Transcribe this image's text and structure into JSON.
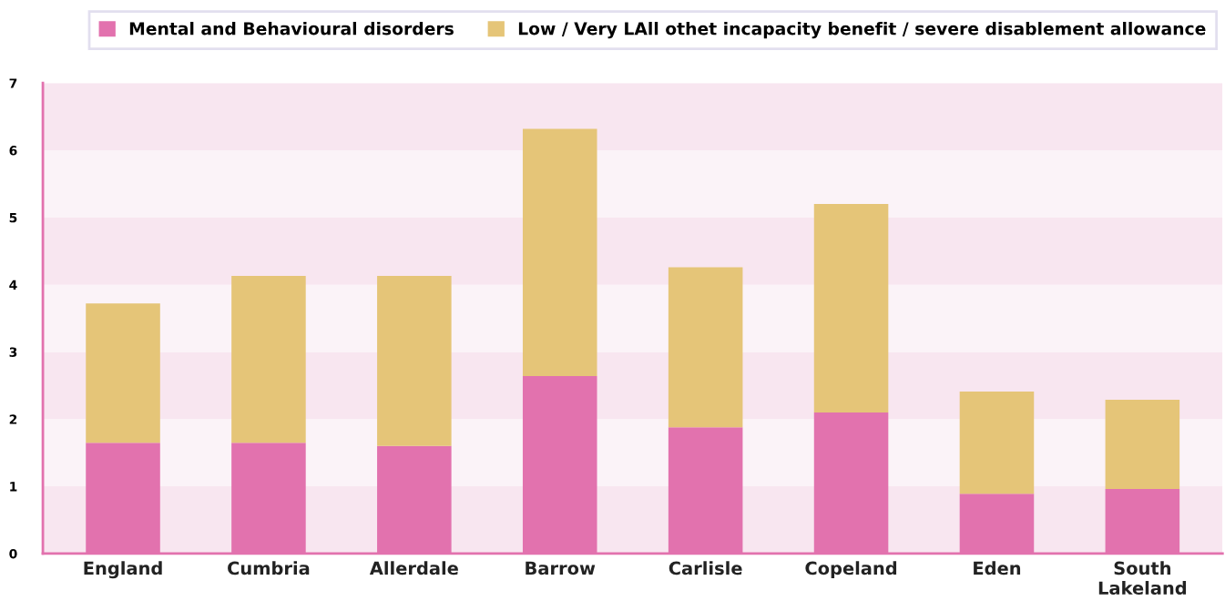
{
  "chart_data": {
    "type": "bar",
    "stacked": true,
    "categories": [
      "England",
      "Cumbria",
      "Allerdale",
      "Barrow",
      "Carlisle",
      "Copeland",
      "Eden",
      "South Lakeland"
    ],
    "series": [
      {
        "name": "Mental and Behavioural disorders",
        "color": "#e272ae",
        "values": [
          1.65,
          1.65,
          1.6,
          2.64,
          1.88,
          2.1,
          0.89,
          0.96
        ]
      },
      {
        "name": "Low / Very LAll othet incapacity benefit / severe disablement allowance",
        "color": "#e5c578",
        "values": [
          2.07,
          2.48,
          2.53,
          3.68,
          2.38,
          3.1,
          1.52,
          1.33
        ]
      }
    ],
    "ylim": [
      0,
      7
    ],
    "yticks": [
      0,
      1,
      2,
      3,
      4,
      5,
      6,
      7
    ],
    "bands": [
      {
        "axis": "y",
        "from": 0,
        "to": 1,
        "color": "#f8e6f0"
      },
      {
        "axis": "y",
        "from": 1,
        "to": 2,
        "color": "#fbf3f8"
      },
      {
        "axis": "y",
        "from": 2,
        "to": 3,
        "color": "#f8e6f0"
      },
      {
        "axis": "y",
        "from": 3,
        "to": 4,
        "color": "#fbf3f8"
      },
      {
        "axis": "y",
        "from": 4,
        "to": 5,
        "color": "#f8e6f0"
      },
      {
        "axis": "y",
        "from": 5,
        "to": 6,
        "color": "#fbf3f8"
      },
      {
        "axis": "y",
        "from": 6,
        "to": 7,
        "color": "#f8e6f0"
      }
    ],
    "legend": "top right",
    "grid": false
  }
}
